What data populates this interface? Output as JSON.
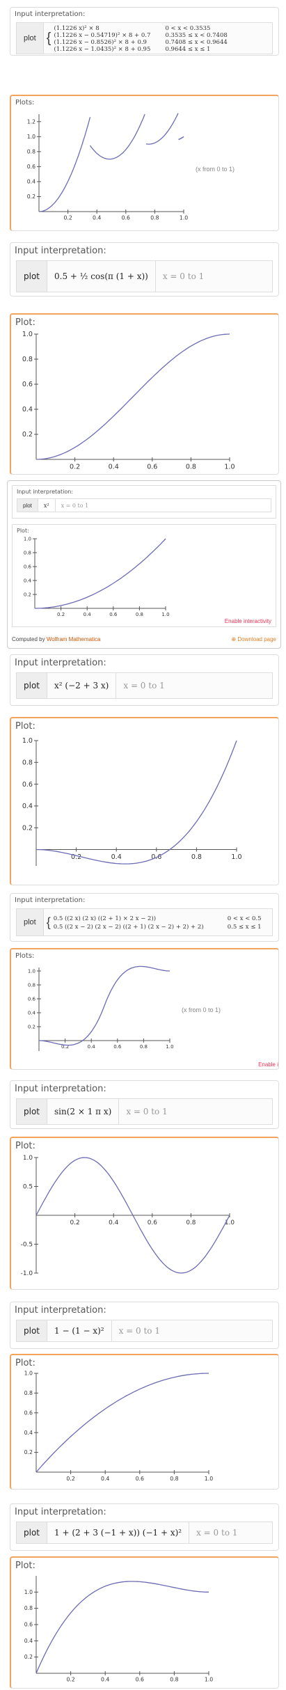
{
  "pod1": {
    "interp_title": "Input interpretation:",
    "kw": "plot",
    "pieces": [
      {
        "expr": "(1.1226 x)² × 8",
        "cond": "0 < x < 0.3535"
      },
      {
        "expr": "(1.1226 x − 0.54719)² × 8 + 0.7",
        "cond": "0.3535 ≤ x < 0.7408"
      },
      {
        "expr": "(1.1226 x − 0.8526)² × 8 + 0.9",
        "cond": "0.7408 ≤ x < 0.9644"
      },
      {
        "expr": "(1.1226 x − 1.0435)² × 8 + 0.95",
        "cond": "0.9644 ≤ x ≤ 1"
      }
    ],
    "plots_title": "Plots:",
    "range_note": "(x from 0 to 1)"
  },
  "pod2": {
    "interp_title": "Input interpretation:",
    "kw": "plot",
    "expr": "0.5 + ½ cos(π (1 + x))",
    "range": "x = 0 to 1",
    "plot_title": "Plot:"
  },
  "pod3": {
    "interp_title": "Input interpretation:",
    "kw": "plot",
    "expr": "x²",
    "range": "x = 0 to 1",
    "plot_title": "Plot:",
    "enable": "Enable interactivity",
    "credit_prefix": "Computed by",
    "credit_brand": "Wolfram Mathematica",
    "download": "Download page"
  },
  "pod4": {
    "interp_title": "Input interpretation:",
    "kw": "plot",
    "expr": "x² (−2 + 3 x)",
    "range": "x = 0 to 1",
    "plot_title": "Plot:"
  },
  "pod5": {
    "interp_title": "Input interpretation:",
    "kw": "plot",
    "pieces": [
      {
        "expr": "0.5 ((2 x) (2 x) ((2 + 1) × 2 x − 2))",
        "cond": "0 < x < 0.5"
      },
      {
        "expr": "0.5 ((2 x − 2) (2 x − 2) ((2 + 1) (2 x − 2) + 2) + 2)",
        "cond": "0.5 ≤ x ≤ 1"
      }
    ],
    "plots_title": "Plots:",
    "range_note": "(x from 0 to 1)",
    "enable": "Enable i"
  },
  "pod6": {
    "interp_title": "Input interpretation:",
    "kw": "plot",
    "expr": "sin(2 × 1 π x)",
    "range": "x = 0 to 1",
    "plot_title": "Plot:"
  },
  "pod7": {
    "interp_title": "Input interpretation:",
    "kw": "plot",
    "expr": "1 − (1 − x)²",
    "range": "x = 0 to 1",
    "plot_title": "Plot:"
  },
  "pod8": {
    "interp_title": "Input interpretation:",
    "kw": "plot",
    "expr": "1 + (2 + 3 (−1 + x)) (−1 + x)²",
    "range": "x = 0 to 1",
    "plot_title": "Plot:"
  },
  "colors": {
    "curve": "#6b6bb5",
    "accent": "#f2a35c"
  },
  "chart_data": [
    {
      "type": "line",
      "id": "p1",
      "x": [
        0,
        1
      ],
      "ylim": [
        0,
        1.3
      ],
      "xticks": [
        "0.2",
        "0.4",
        "0.6",
        "0.8",
        "1.0"
      ],
      "yticks": [
        "0.2",
        "0.4",
        "0.6",
        "0.8",
        "1.0",
        "1.2"
      ]
    },
    {
      "type": "line",
      "id": "p2",
      "x": [
        0,
        1
      ],
      "ylim": [
        0,
        1
      ],
      "xticks": [
        "0.2",
        "0.4",
        "0.6",
        "0.8",
        "1.0"
      ],
      "yticks": [
        "0.2",
        "0.4",
        "0.6",
        "0.8",
        "1.0"
      ]
    },
    {
      "type": "line",
      "id": "p3",
      "x": [
        0,
        1
      ],
      "ylim": [
        0,
        1
      ],
      "xticks": [
        "0.2",
        "0.4",
        "0.6",
        "0.8",
        "1.0"
      ],
      "yticks": [
        "0.2",
        "0.4",
        "0.6",
        "0.8",
        "1.0"
      ]
    },
    {
      "type": "line",
      "id": "p4",
      "x": [
        0,
        1
      ],
      "ylim": [
        -0.15,
        1
      ],
      "xticks": [
        "0.2",
        "0.4",
        "0.6",
        "0.8",
        "1.0"
      ],
      "yticks": [
        "0.2",
        "0.4",
        "0.6",
        "0.8",
        "1.0"
      ]
    },
    {
      "type": "line",
      "id": "p5",
      "x": [
        0,
        1
      ],
      "ylim": [
        -0.15,
        1.05
      ],
      "xticks": [
        "0.2",
        "0.4",
        "0.6",
        "0.8",
        "1.0"
      ],
      "yticks": [
        "0.2",
        "0.4",
        "0.6",
        "0.8",
        "1.0"
      ]
    },
    {
      "type": "line",
      "id": "p6",
      "x": [
        0,
        1
      ],
      "ylim": [
        -1,
        1
      ],
      "xticks": [
        "0.2",
        "0.4",
        "0.6",
        "0.8",
        "1.0"
      ],
      "yticks": [
        "-1.0",
        "-0.5",
        "0.5",
        "1.0"
      ]
    },
    {
      "type": "line",
      "id": "p7",
      "x": [
        0,
        1
      ],
      "ylim": [
        0,
        1
      ],
      "xticks": [
        "0.2",
        "0.4",
        "0.6",
        "0.8",
        "1.0"
      ],
      "yticks": [
        "0.2",
        "0.4",
        "0.6",
        "0.8",
        "1.0"
      ]
    },
    {
      "type": "line",
      "id": "p8",
      "x": [
        0,
        1
      ],
      "ylim": [
        0,
        1.2
      ],
      "xticks": [
        "0.2",
        "0.4",
        "0.6",
        "0.8",
        "1.0"
      ],
      "yticks": [
        "0.2",
        "0.4",
        "0.6",
        "0.8",
        "1.0"
      ]
    }
  ]
}
